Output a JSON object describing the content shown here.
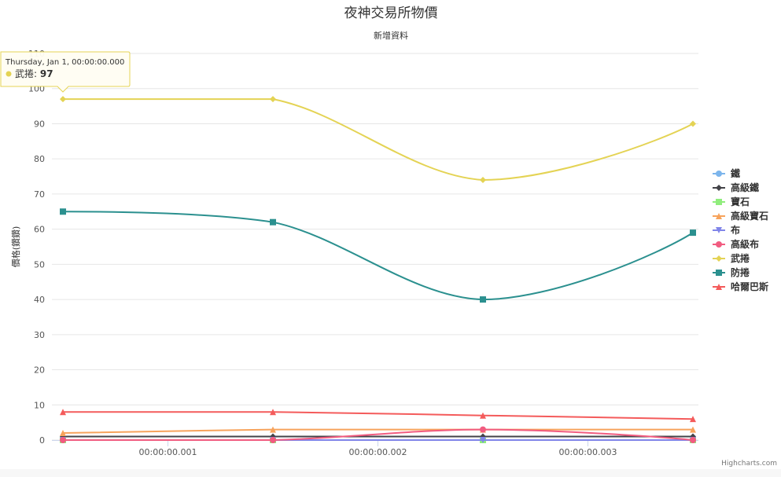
{
  "chart_data": {
    "type": "line",
    "title": "夜神交易所物價",
    "subtitle": "新增資料",
    "ylabel": "價格(鑽鑽)",
    "ylim": [
      0,
      110
    ],
    "yticks": [
      0,
      10,
      20,
      30,
      40,
      50,
      60,
      70,
      80,
      90,
      100,
      110
    ],
    "x": [
      0.0005,
      0.0015,
      0.0025,
      0.0035
    ],
    "xticks": [
      {
        "value": 0.001,
        "label": "00:00:00.001"
      },
      {
        "value": 0.002,
        "label": "00:00:00.002"
      },
      {
        "value": 0.003,
        "label": "00:00:00.003"
      }
    ],
    "grid": true,
    "legend_position": "right",
    "series": [
      {
        "name": "鐵",
        "color": "#7cb5ec",
        "marker": "circle",
        "values": [
          0,
          0,
          0,
          0
        ]
      },
      {
        "name": "高級鐵",
        "color": "#434348",
        "marker": "diamond",
        "values": [
          1,
          1,
          1,
          1
        ]
      },
      {
        "name": "寶石",
        "color": "#90ed7d",
        "marker": "square",
        "values": [
          0,
          0,
          0,
          0
        ]
      },
      {
        "name": "高級寶石",
        "color": "#f7a35c",
        "marker": "triangle",
        "values": [
          2,
          3,
          3,
          3
        ]
      },
      {
        "name": "布",
        "color": "#8085e9",
        "marker": "triangle-down",
        "values": [
          0,
          0,
          0,
          0
        ]
      },
      {
        "name": "高級布",
        "color": "#f15c80",
        "marker": "circle",
        "values": [
          0,
          0,
          3,
          0
        ]
      },
      {
        "name": "武捲",
        "color": "#e4d354",
        "marker": "diamond",
        "values": [
          97,
          97,
          74,
          90
        ]
      },
      {
        "name": "防捲",
        "color": "#2b908f",
        "marker": "square",
        "values": [
          65,
          62,
          40,
          59
        ]
      },
      {
        "name": "哈爾巴斯",
        "color": "#f45b5b",
        "marker": "triangle",
        "values": [
          8,
          8,
          7,
          6
        ]
      }
    ]
  },
  "tooltip": {
    "header": "Thursday, Jan 1, 00:00:00.000",
    "series_name": "武捲",
    "value": "97",
    "color": "#e4d354"
  },
  "credits": "Highcharts.com"
}
